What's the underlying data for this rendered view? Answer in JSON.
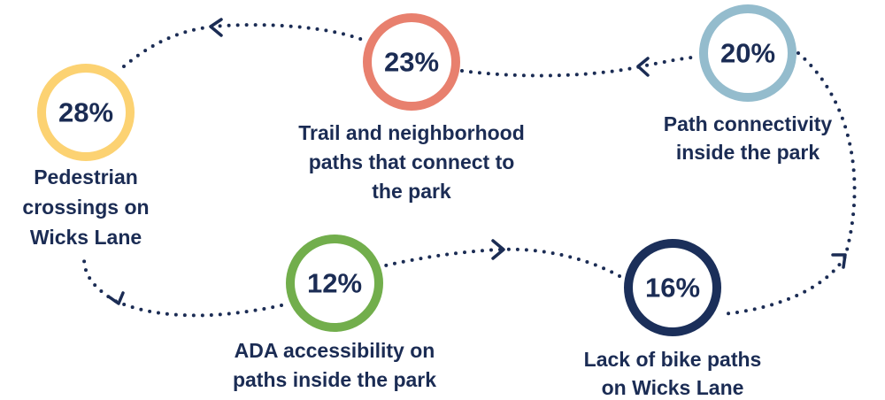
{
  "nodes": [
    {
      "value": "28%",
      "label": [
        "Pedestrian",
        "crossings on",
        "Wicks Lane"
      ]
    },
    {
      "value": "23%",
      "label": [
        "Trail and neighborhood",
        "paths that connect to",
        "the park"
      ]
    },
    {
      "value": "20%",
      "label": [
        "Path connectivity",
        "inside the park"
      ]
    },
    {
      "value": "12%",
      "label": [
        "ADA accessibility on",
        "paths inside the park"
      ]
    },
    {
      "value": "16%",
      "label": [
        "Lack of bike paths",
        "on Wicks Lane"
      ]
    }
  ]
}
